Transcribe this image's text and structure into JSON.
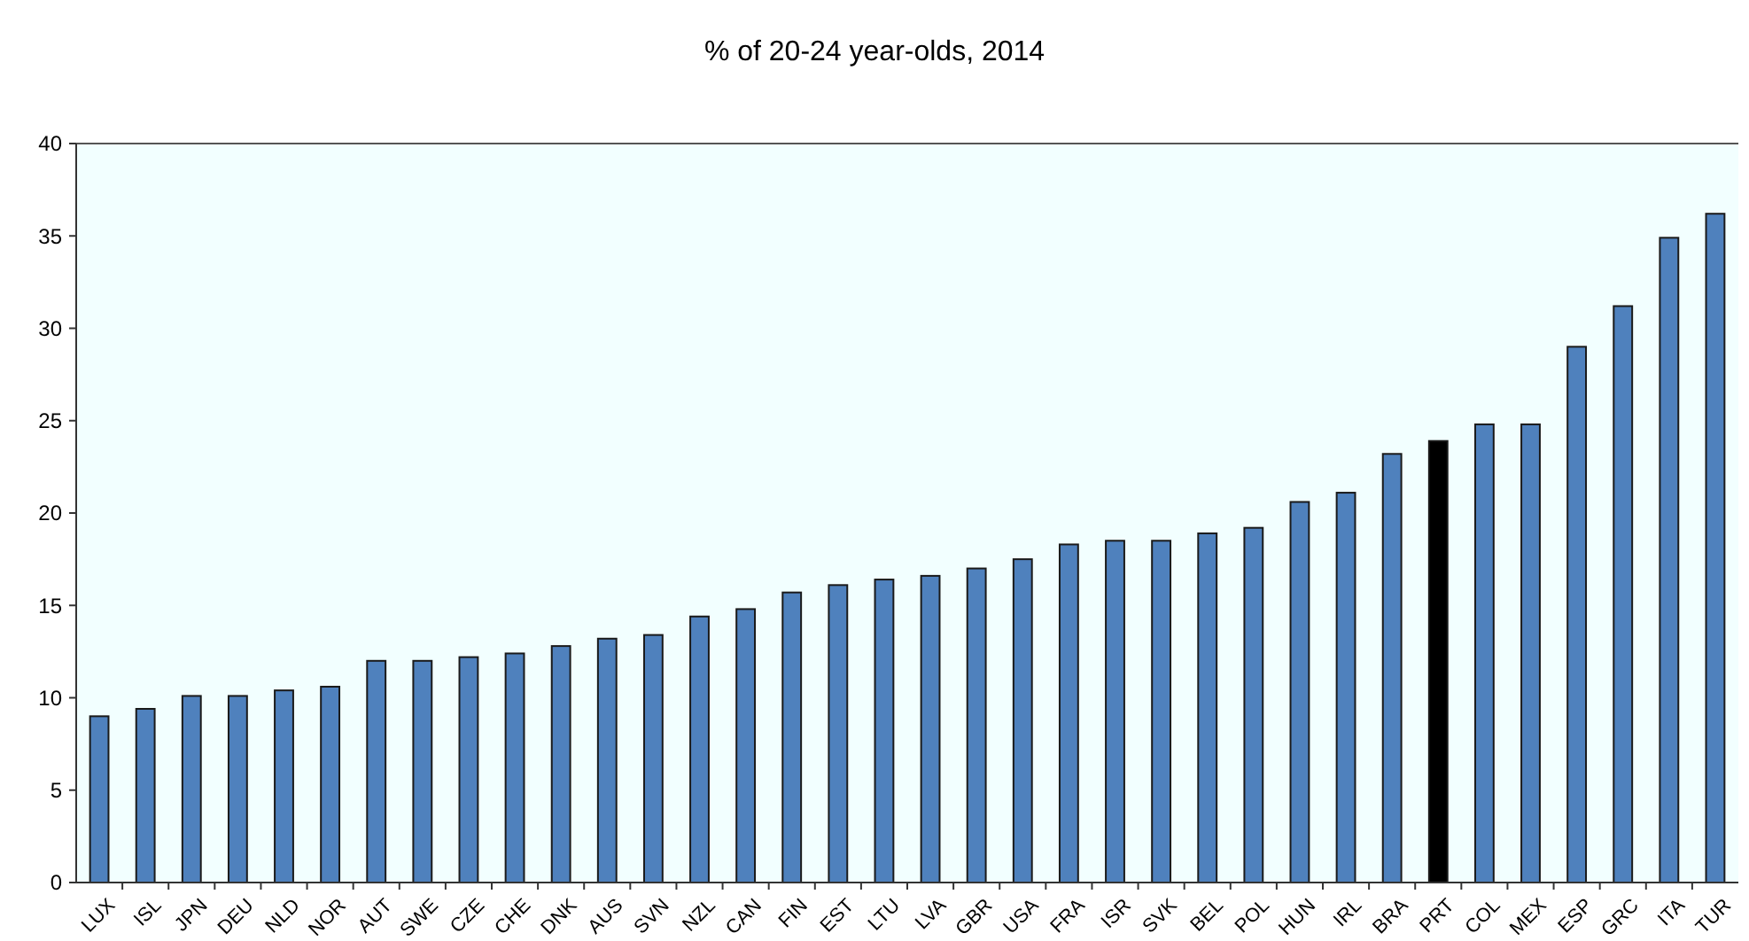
{
  "chart_data": {
    "type": "bar",
    "title": "% of 20-24 year-olds, 2014",
    "categories": [
      "LUX",
      "ISL",
      "JPN",
      "DEU",
      "NLD",
      "NOR",
      "AUT",
      "SWE",
      "CZE",
      "CHE",
      "DNK",
      "AUS",
      "SVN",
      "NZL",
      "CAN",
      "FIN",
      "EST",
      "LTU",
      "LVA",
      "GBR",
      "USA",
      "FRA",
      "ISR",
      "SVK",
      "BEL",
      "POL",
      "HUN",
      "IRL",
      "BRA",
      "PRT",
      "COL",
      "MEX",
      "ESP",
      "GRC",
      "ITA",
      "TUR"
    ],
    "values": [
      9.0,
      9.4,
      10.1,
      10.1,
      10.4,
      10.6,
      12.0,
      12.0,
      12.2,
      12.4,
      12.8,
      13.2,
      13.4,
      14.4,
      14.8,
      15.7,
      16.1,
      16.4,
      16.6,
      17.0,
      17.5,
      18.3,
      18.5,
      18.5,
      18.9,
      19.2,
      20.6,
      21.1,
      23.2,
      23.9,
      24.8,
      24.8,
      29.0,
      31.2,
      34.9,
      36.2
    ],
    "colors": [
      "#4f81bd",
      "#4f81bd",
      "#4f81bd",
      "#4f81bd",
      "#4f81bd",
      "#4f81bd",
      "#4f81bd",
      "#4f81bd",
      "#4f81bd",
      "#4f81bd",
      "#4f81bd",
      "#4f81bd",
      "#4f81bd",
      "#4f81bd",
      "#4f81bd",
      "#4f81bd",
      "#4f81bd",
      "#4f81bd",
      "#4f81bd",
      "#4f81bd",
      "#4f81bd",
      "#4f81bd",
      "#4f81bd",
      "#4f81bd",
      "#4f81bd",
      "#4f81bd",
      "#4f81bd",
      "#4f81bd",
      "#4f81bd",
      "#000000",
      "#4f81bd",
      "#4f81bd",
      "#4f81bd",
      "#4f81bd",
      "#4f81bd",
      "#4f81bd"
    ],
    "ylim": [
      0,
      40
    ],
    "yticks": [
      0,
      5,
      10,
      15,
      20,
      25,
      30,
      35,
      40
    ],
    "grid": false
  }
}
